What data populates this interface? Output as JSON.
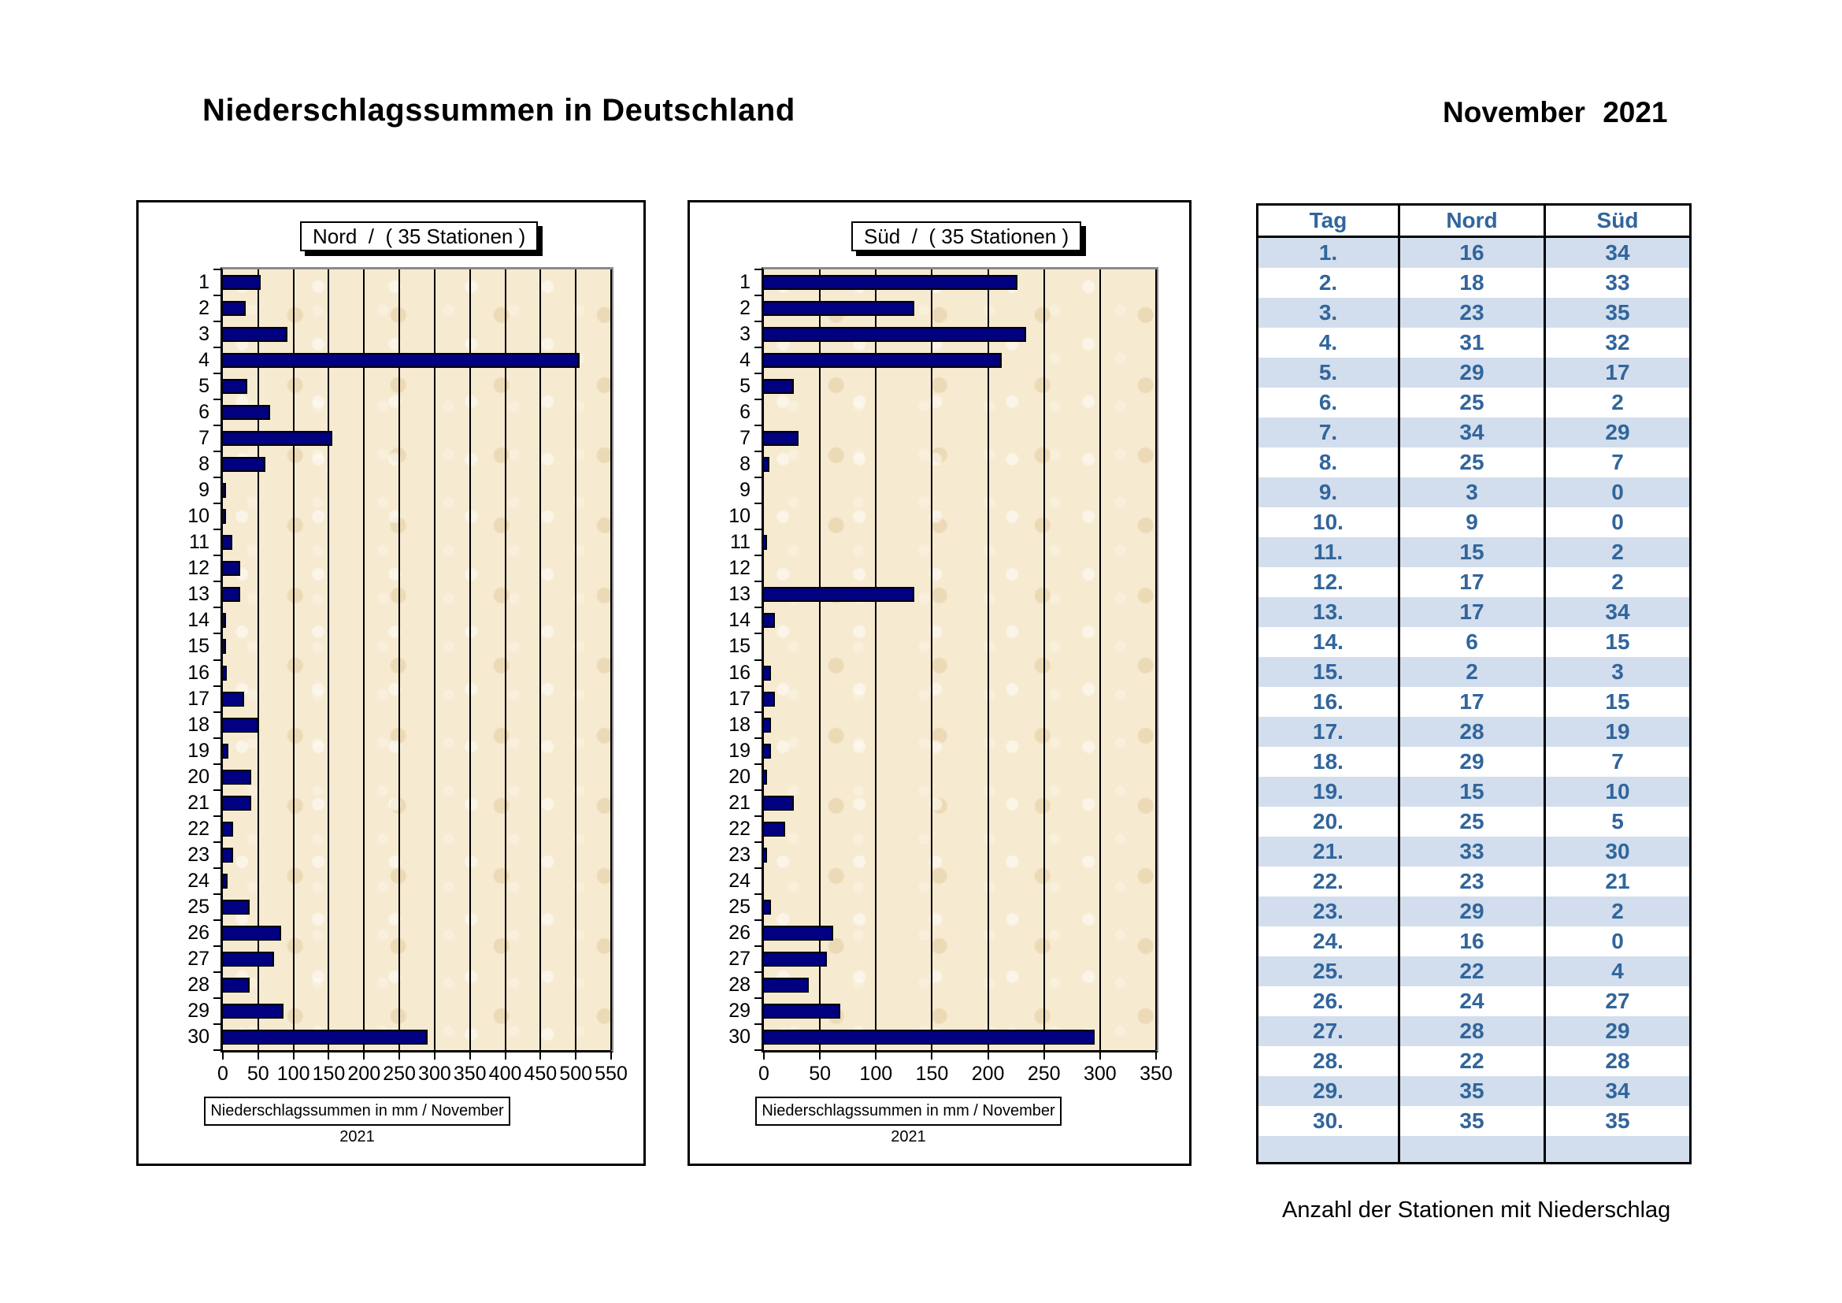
{
  "page": {
    "title": "Niederschlagssummen in Deutschland",
    "period": "November 2021"
  },
  "colors": {
    "bar": "#000080",
    "plot_background": "#f6ead1",
    "table_text": "#31659c",
    "table_row_alt": "#d2deed"
  },
  "chart_data": [
    {
      "type": "bar",
      "orientation": "horizontal",
      "title": "Nord  /  ( 35 Stationen )",
      "caption": "Niederschlagssummen in mm / November 2021",
      "unit": "mm",
      "categories": [
        "1",
        "2",
        "3",
        "4",
        "5",
        "6",
        "7",
        "8",
        "9",
        "10",
        "11",
        "12",
        "13",
        "14",
        "15",
        "16",
        "17",
        "18",
        "19",
        "20",
        "21",
        "22",
        "23",
        "24",
        "25",
        "26",
        "27",
        "28",
        "29",
        "30"
      ],
      "values": [
        53,
        32,
        92,
        505,
        35,
        67,
        155,
        60,
        3,
        4,
        13,
        24,
        25,
        4,
        2,
        6,
        30,
        50,
        8,
        40,
        40,
        15,
        15,
        7,
        38,
        82,
        72,
        38,
        86,
        290
      ],
      "xlim": [
        0,
        550
      ],
      "xtick_step": 50,
      "grid": true,
      "legend": false
    },
    {
      "type": "bar",
      "orientation": "horizontal",
      "title": "Süd  /  ( 35 Stationen )",
      "caption": "Niederschlagssummen in mm / November 2021",
      "unit": "mm",
      "categories": [
        "1",
        "2",
        "3",
        "4",
        "5",
        "6",
        "7",
        "8",
        "9",
        "10",
        "11",
        "12",
        "13",
        "14",
        "15",
        "16",
        "17",
        "18",
        "19",
        "20",
        "21",
        "22",
        "23",
        "24",
        "25",
        "26",
        "27",
        "28",
        "29",
        "30"
      ],
      "values": [
        226,
        134,
        234,
        212,
        27,
        0,
        31,
        5,
        0,
        0,
        3,
        0,
        134,
        10,
        0,
        6,
        10,
        6,
        6,
        3,
        27,
        19,
        3,
        0,
        6,
        62,
        56,
        40,
        68,
        295
      ],
      "xlim": [
        0,
        350
      ],
      "xtick_step": 50,
      "grid": true,
      "legend": false
    },
    {
      "type": "table",
      "columns": [
        "Tag",
        "Nord",
        "Süd"
      ],
      "rows": [
        [
          "1.",
          16,
          34
        ],
        [
          "2.",
          18,
          33
        ],
        [
          "3.",
          23,
          35
        ],
        [
          "4.",
          31,
          32
        ],
        [
          "5.",
          29,
          17
        ],
        [
          "6.",
          25,
          2
        ],
        [
          "7.",
          34,
          29
        ],
        [
          "8.",
          25,
          7
        ],
        [
          "9.",
          3,
          0
        ],
        [
          "10.",
          9,
          0
        ],
        [
          "11.",
          15,
          2
        ],
        [
          "12.",
          17,
          2
        ],
        [
          "13.",
          17,
          34
        ],
        [
          "14.",
          6,
          15
        ],
        [
          "15.",
          2,
          3
        ],
        [
          "16.",
          17,
          15
        ],
        [
          "17.",
          28,
          19
        ],
        [
          "18.",
          29,
          7
        ],
        [
          "19.",
          15,
          10
        ],
        [
          "20.",
          25,
          5
        ],
        [
          "21.",
          33,
          30
        ],
        [
          "22.",
          23,
          21
        ],
        [
          "23.",
          29,
          2
        ],
        [
          "24.",
          16,
          0
        ],
        [
          "25.",
          22,
          4
        ],
        [
          "26.",
          24,
          27
        ],
        [
          "27.",
          28,
          29
        ],
        [
          "28.",
          22,
          28
        ],
        [
          "29.",
          35,
          34
        ],
        [
          "30.",
          35,
          35
        ]
      ],
      "caption": "Anzahl der Stationen mit Niederschlag"
    }
  ]
}
